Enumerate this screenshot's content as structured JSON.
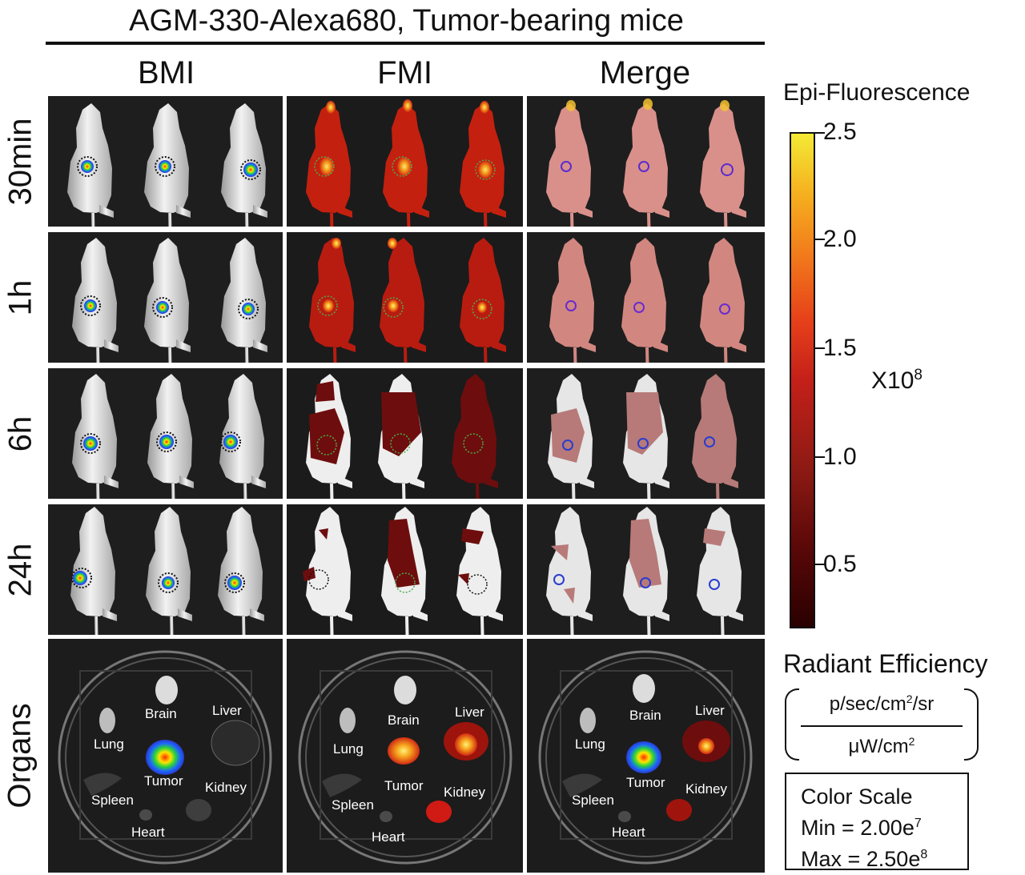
{
  "title": "AGM-330-Alexa680, Tumor-bearing mice",
  "columns": [
    "BMI",
    "FMI",
    "Merge"
  ],
  "rows": [
    "30min",
    "1h",
    "6h",
    "24h",
    "Organs"
  ],
  "organ_labels": [
    "Brain",
    "Liver",
    "Lung",
    "Tumor",
    "Kidney",
    "Spleen",
    "Heart"
  ],
  "colorbar": {
    "title": "Epi-Fluorescence",
    "ticks": [
      "2.5",
      "2.0",
      "1.5",
      "1.0",
      "0.5"
    ],
    "multiplier_base": "X10",
    "multiplier_exp": "8",
    "colors": [
      "#2a0000",
      "#8d1a14",
      "#c42019",
      "#f27d1b",
      "#f4ea35"
    ]
  },
  "units": {
    "label": "Radiant Efficiency",
    "numerator": "p/sec/cm",
    "numerator_sup": "2",
    "numerator_tail": "/sr",
    "denominator": "μW/cm",
    "denominator_sup": "2"
  },
  "color_scale": {
    "title": "Color Scale",
    "min_label": "Min = 2.00e",
    "min_exp": "7",
    "max_label": "Max = 2.50e",
    "max_exp": "8"
  }
}
